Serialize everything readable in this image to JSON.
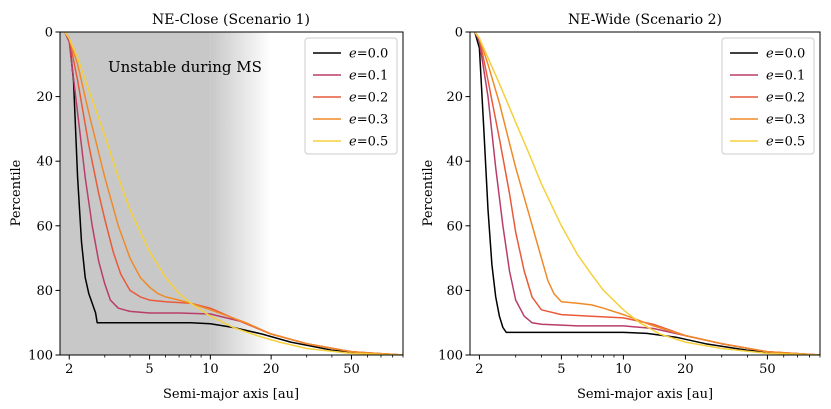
{
  "chart_data": [
    {
      "type": "line",
      "title": "NE-Close (Scenario 1)",
      "xlabel": "Semi-major axis [au]",
      "ylabel": "Percentile",
      "xscale": "log",
      "xlim": [
        1.8,
        90
      ],
      "ylim": [
        100,
        0
      ],
      "y_inverted": true,
      "xticks": [
        2,
        5,
        10,
        20,
        50
      ],
      "yticks": [
        0,
        20,
        40,
        60,
        80,
        100
      ],
      "legend_position": "top-right",
      "annotation": "Unstable during MS",
      "shaded_region": {
        "from": 1.8,
        "to": 10,
        "fade_to": 20,
        "color": "#c8c8c8"
      },
      "series": [
        {
          "name": "e = 0.0",
          "color": "#000000",
          "x": [
            1.9,
            2.0,
            2.1,
            2.2,
            2.3,
            2.4,
            2.5,
            2.6,
            2.7,
            2.75,
            3.0,
            5,
            8,
            10,
            13,
            18,
            25,
            40,
            60,
            90
          ],
          "y": [
            0,
            2,
            15,
            45,
            65,
            76,
            81,
            84,
            87,
            90,
            90,
            90,
            90,
            90.3,
            91.5,
            93.5,
            96,
            98.5,
            99.6,
            100
          ]
        },
        {
          "name": "e = 0.1",
          "color": "#b83d6a",
          "x": [
            1.9,
            2.0,
            2.2,
            2.4,
            2.6,
            2.8,
            3.0,
            3.2,
            3.5,
            4,
            5,
            7,
            10,
            14,
            20,
            30,
            50,
            90
          ],
          "y": [
            0,
            3,
            25,
            45,
            60,
            71,
            78,
            83,
            85.5,
            86.5,
            87,
            87,
            87.3,
            89.5,
            93.5,
            96.5,
            99,
            100
          ]
        },
        {
          "name": "e = 0.2",
          "color": "#e85a3a",
          "x": [
            1.9,
            2.0,
            2.2,
            2.5,
            2.8,
            3.0,
            3.3,
            3.6,
            4,
            4.5,
            5,
            6,
            8,
            10,
            14,
            20,
            30,
            50,
            90
          ],
          "y": [
            0,
            2,
            15,
            35,
            50,
            58,
            68,
            75,
            80,
            82,
            83,
            83.5,
            84,
            85.5,
            89.5,
            93.5,
            96.5,
            99,
            100
          ]
        },
        {
          "name": "e = 0.3",
          "color": "#f08a28",
          "x": [
            1.9,
            2.0,
            2.2,
            2.5,
            3.0,
            3.5,
            4,
            4.5,
            5,
            5.5,
            6,
            7,
            8,
            10,
            15,
            20,
            30,
            50,
            90
          ],
          "y": [
            0,
            2,
            10,
            25,
            45,
            60,
            70,
            76,
            79,
            81,
            82,
            83,
            84,
            86,
            90,
            93.5,
            96.5,
            99,
            100
          ]
        },
        {
          "name": "e = 0.5",
          "color": "#f5d03d",
          "x": [
            1.9,
            2.0,
            2.2,
            2.5,
            3.0,
            3.5,
            4,
            5,
            6,
            7,
            8,
            10,
            13,
            17,
            22,
            30,
            50,
            90
          ],
          "y": [
            0,
            2,
            8,
            18,
            32,
            45,
            55,
            68,
            76,
            81,
            84,
            88,
            91.5,
            94,
            96,
            98,
            99.5,
            100
          ]
        }
      ]
    },
    {
      "type": "line",
      "title": "NE-Wide (Scenario 2)",
      "xlabel": "Semi-major axis [au]",
      "ylabel": "Percentile",
      "xscale": "log",
      "xlim": [
        1.8,
        90
      ],
      "ylim": [
        100,
        0
      ],
      "y_inverted": true,
      "xticks": [
        2,
        5,
        10,
        20,
        50
      ],
      "yticks": [
        0,
        20,
        40,
        60,
        80,
        100
      ],
      "legend_position": "top-right",
      "series": [
        {
          "name": "e = 0.0",
          "color": "#000000",
          "x": [
            1.9,
            2.0,
            2.1,
            2.2,
            2.3,
            2.4,
            2.5,
            2.6,
            2.7,
            3.0,
            5,
            10,
            13,
            18,
            25,
            40,
            60,
            90
          ],
          "y": [
            0,
            5,
            30,
            55,
            72,
            82,
            88,
            91.5,
            93,
            93,
            93,
            93,
            93.3,
            94.5,
            96.5,
            98.5,
            99.6,
            100
          ]
        },
        {
          "name": "e = 0.1",
          "color": "#b83d6a",
          "x": [
            1.9,
            2.0,
            2.2,
            2.4,
            2.6,
            2.8,
            3.0,
            3.3,
            3.6,
            4,
            6,
            10,
            14,
            20,
            30,
            50,
            90
          ],
          "y": [
            0,
            3,
            20,
            42,
            60,
            74,
            83,
            88,
            90,
            90.5,
            91,
            91,
            91.8,
            94,
            96.5,
            99,
            100
          ]
        },
        {
          "name": "e = 0.2",
          "color": "#e85a3a",
          "x": [
            1.9,
            2.0,
            2.2,
            2.5,
            2.8,
            3.0,
            3.3,
            3.6,
            4,
            5,
            7,
            10,
            14,
            20,
            30,
            50,
            90
          ],
          "y": [
            0,
            2,
            15,
            33,
            50,
            62,
            74,
            82,
            86,
            87.5,
            88,
            88.5,
            90.5,
            94,
            96.5,
            99,
            100
          ]
        },
        {
          "name": "e = 0.3",
          "color": "#f08a28",
          "x": [
            1.9,
            2.0,
            2.2,
            2.5,
            3.0,
            3.5,
            4,
            4.3,
            4.6,
            5,
            6,
            7,
            8,
            10,
            14,
            20,
            30,
            50,
            90
          ],
          "y": [
            0,
            2,
            10,
            22,
            42,
            57,
            70,
            77,
            81,
            83.5,
            84,
            84.5,
            85.5,
            87.5,
            91,
            94,
            96.5,
            99,
            100
          ]
        },
        {
          "name": "e = 0.5",
          "color": "#f5d03d",
          "x": [
            1.9,
            2.0,
            2.2,
            2.5,
            3.0,
            3.5,
            4,
            5,
            6,
            7,
            8,
            10,
            12,
            15,
            20,
            30,
            50,
            90
          ],
          "y": [
            0,
            2,
            8,
            16,
            28,
            38,
            47,
            60,
            69,
            75,
            80,
            86,
            90,
            93.5,
            96,
            98,
            99.5,
            100
          ]
        }
      ]
    }
  ]
}
